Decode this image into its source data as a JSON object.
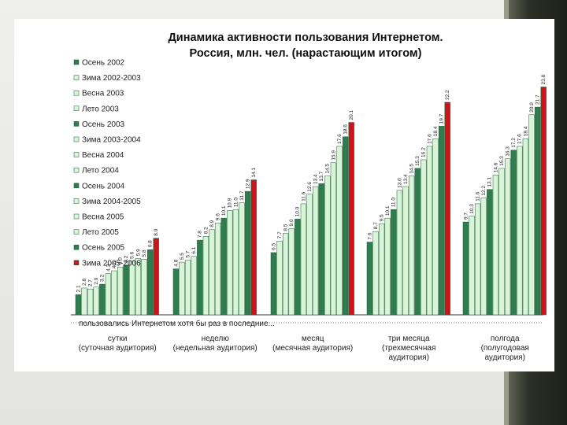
{
  "chart_data": {
    "type": "bar",
    "title_line1": "Динамика активности пользования Интернетом.",
    "title_line2": "Россия, млн. чел. (нарастающим итогом)",
    "xlabel": "пользовались Интернетом хотя бы раз в последние...",
    "ylim": [
      0,
      25
    ],
    "series_names": [
      "Осень 2002",
      "Зима 2002-2003",
      "Весна 2003",
      "Лето 2003",
      "Осень 2003",
      "Зима 2003-2004",
      "Весна 2004",
      "Лето 2004",
      "Осень 2004",
      "Зима 2004-2005",
      "Весна 2005",
      "Лето 2005",
      "Осень 2005",
      "Зима 2005-2006"
    ],
    "groups": [
      {
        "label1": "сутки",
        "label2": "(суточная аудитория)",
        "label3": "",
        "values": [
          2.1,
          2.8,
          2.7,
          2.9,
          3.2,
          4.3,
          4.6,
          5.0,
          5.2,
          5.6,
          5.9,
          5.8,
          6.8,
          8.0
        ]
      },
      {
        "label1": "неделю",
        "label2": "(недельная аудитория)",
        "label3": "",
        "values": [
          4.8,
          5.5,
          5.7,
          6.1,
          7.8,
          8.2,
          8.9,
          9.6,
          10.1,
          10.9,
          11.0,
          11.7,
          12.9,
          14.1
        ]
      },
      {
        "label1": "месяц",
        "label2": "(месячная аудитория)",
        "label3": "",
        "values": [
          6.5,
          7.7,
          8.5,
          9.0,
          10.0,
          11.6,
          12.6,
          13.4,
          13.7,
          14.5,
          15.9,
          17.6,
          18.6,
          20.1
        ]
      },
      {
        "label1": "три месяца",
        "label2": "(трехмесячная",
        "label3": "аудитория)",
        "values": [
          7.6,
          8.7,
          9.5,
          10.1,
          11.0,
          13.0,
          13.4,
          14.5,
          15.3,
          16.2,
          17.6,
          18.4,
          19.7,
          22.2
        ]
      },
      {
        "label1": "полгода",
        "label2": "(полугодовая",
        "label3": "аудитория)",
        "values": [
          9.7,
          10.3,
          11.6,
          12.2,
          13.1,
          14.6,
          15.3,
          16.3,
          17.2,
          17.6,
          18.4,
          20.9,
          21.7,
          23.8
        ]
      }
    ],
    "colors": {
      "dark": "#2f7d4f",
      "light": "#d8f5d8",
      "red": "#c8161b"
    }
  }
}
